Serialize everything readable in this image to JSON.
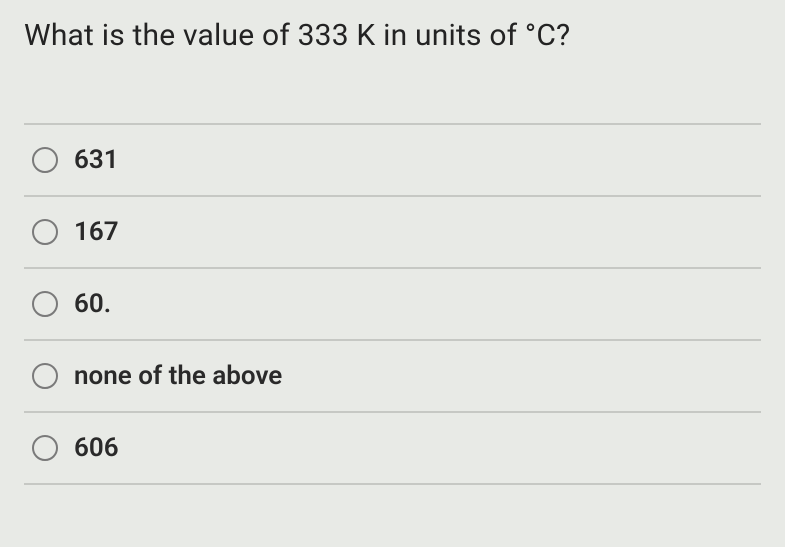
{
  "question": {
    "text": "What is the value of 333 K in units of °C?"
  },
  "options": [
    {
      "label": "631"
    },
    {
      "label": "167"
    },
    {
      "label": "60."
    },
    {
      "label": "none of the above"
    },
    {
      "label": "606"
    }
  ],
  "styling": {
    "background_color": "#e8eae6",
    "text_color": "#2a2a2a",
    "divider_color": "#c6c8c4",
    "radio_border_color": "#7a7a7a",
    "question_fontsize": 30,
    "option_fontsize": 26,
    "option_fontweight": 600
  }
}
